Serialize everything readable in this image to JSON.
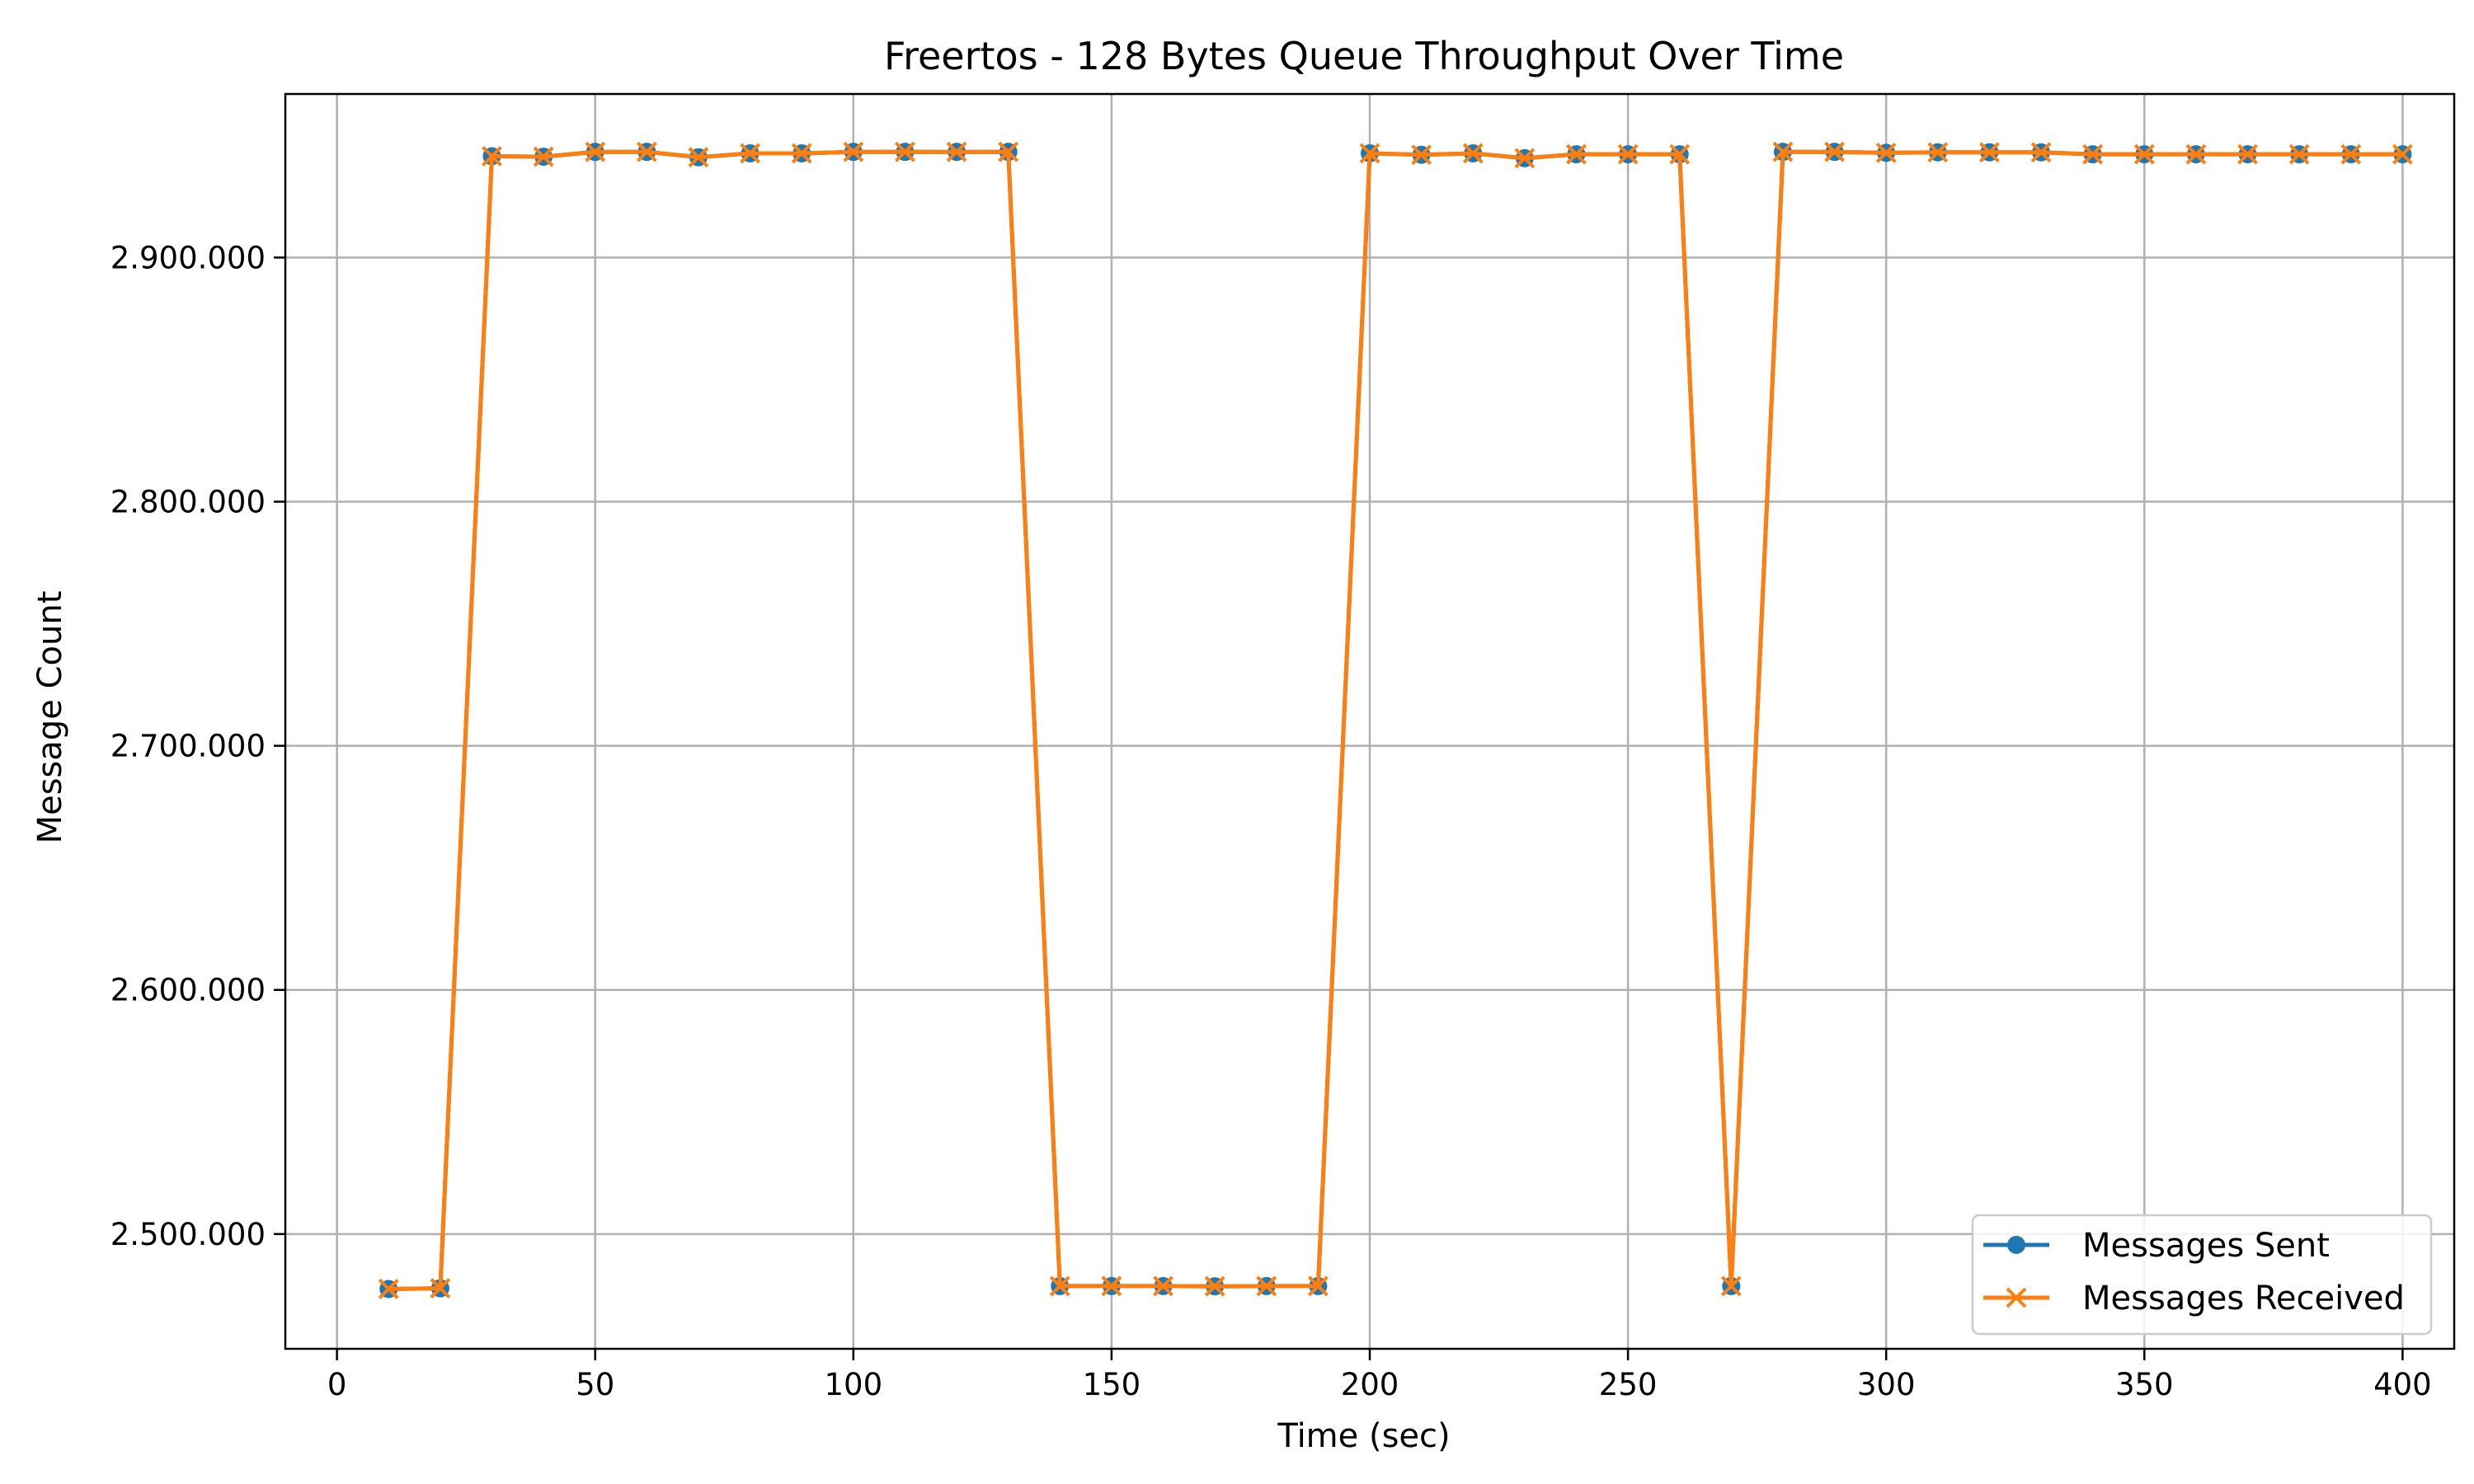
{
  "chart_data": {
    "type": "line",
    "title": "Freertos - 128 Bytes Queue Throughput Over Time",
    "xlabel": "Time (sec)",
    "ylabel": "Message Count",
    "xlim": [
      -10,
      410
    ],
    "ylim": [
      2453000,
      2967000
    ],
    "xticks": [
      0,
      50,
      100,
      150,
      200,
      250,
      300,
      350,
      400
    ],
    "yticks": [
      2500000,
      2600000,
      2700000,
      2800000,
      2900000
    ],
    "ytick_labels": [
      "2.500.000",
      "2.600.000",
      "2.700.000",
      "2.800.000",
      "2.900.000"
    ],
    "grid": true,
    "legend_position": "lower-right",
    "x": [
      10,
      20,
      30,
      40,
      50,
      60,
      70,
      80,
      90,
      100,
      110,
      120,
      130,
      140,
      150,
      160,
      170,
      180,
      190,
      200,
      210,
      220,
      230,
      240,
      250,
      260,
      270,
      280,
      290,
      300,
      310,
      320,
      330,
      340,
      350,
      360,
      370,
      380,
      390,
      400
    ],
    "series": [
      {
        "name": "Messages Sent",
        "marker": "circle",
        "color": "#1f77b4",
        "values": [
          2477500,
          2477800,
          2941500,
          2941300,
          2943300,
          2943300,
          2941100,
          2942700,
          2942700,
          2943300,
          2943300,
          2943300,
          2943300,
          2478700,
          2478700,
          2478700,
          2478600,
          2478700,
          2478700,
          2942700,
          2942100,
          2942700,
          2940700,
          2942300,
          2942300,
          2942300,
          2478700,
          2943300,
          2943300,
          2942900,
          2943100,
          2943100,
          2943100,
          2942300,
          2942300,
          2942300,
          2942300,
          2942300,
          2942300,
          2942300
        ]
      },
      {
        "name": "Messages Received",
        "marker": "x",
        "color": "#ff7f0e",
        "values": [
          2477500,
          2477800,
          2941500,
          2941300,
          2943300,
          2943300,
          2941100,
          2942700,
          2942700,
          2943300,
          2943300,
          2943300,
          2943300,
          2478700,
          2478700,
          2478700,
          2478600,
          2478700,
          2478700,
          2942700,
          2942100,
          2942700,
          2940700,
          2942300,
          2942300,
          2942300,
          2478700,
          2943300,
          2943300,
          2942900,
          2943100,
          2943100,
          2943100,
          2942300,
          2942300,
          2942300,
          2942300,
          2942300,
          2942300,
          2942300
        ]
      }
    ]
  }
}
